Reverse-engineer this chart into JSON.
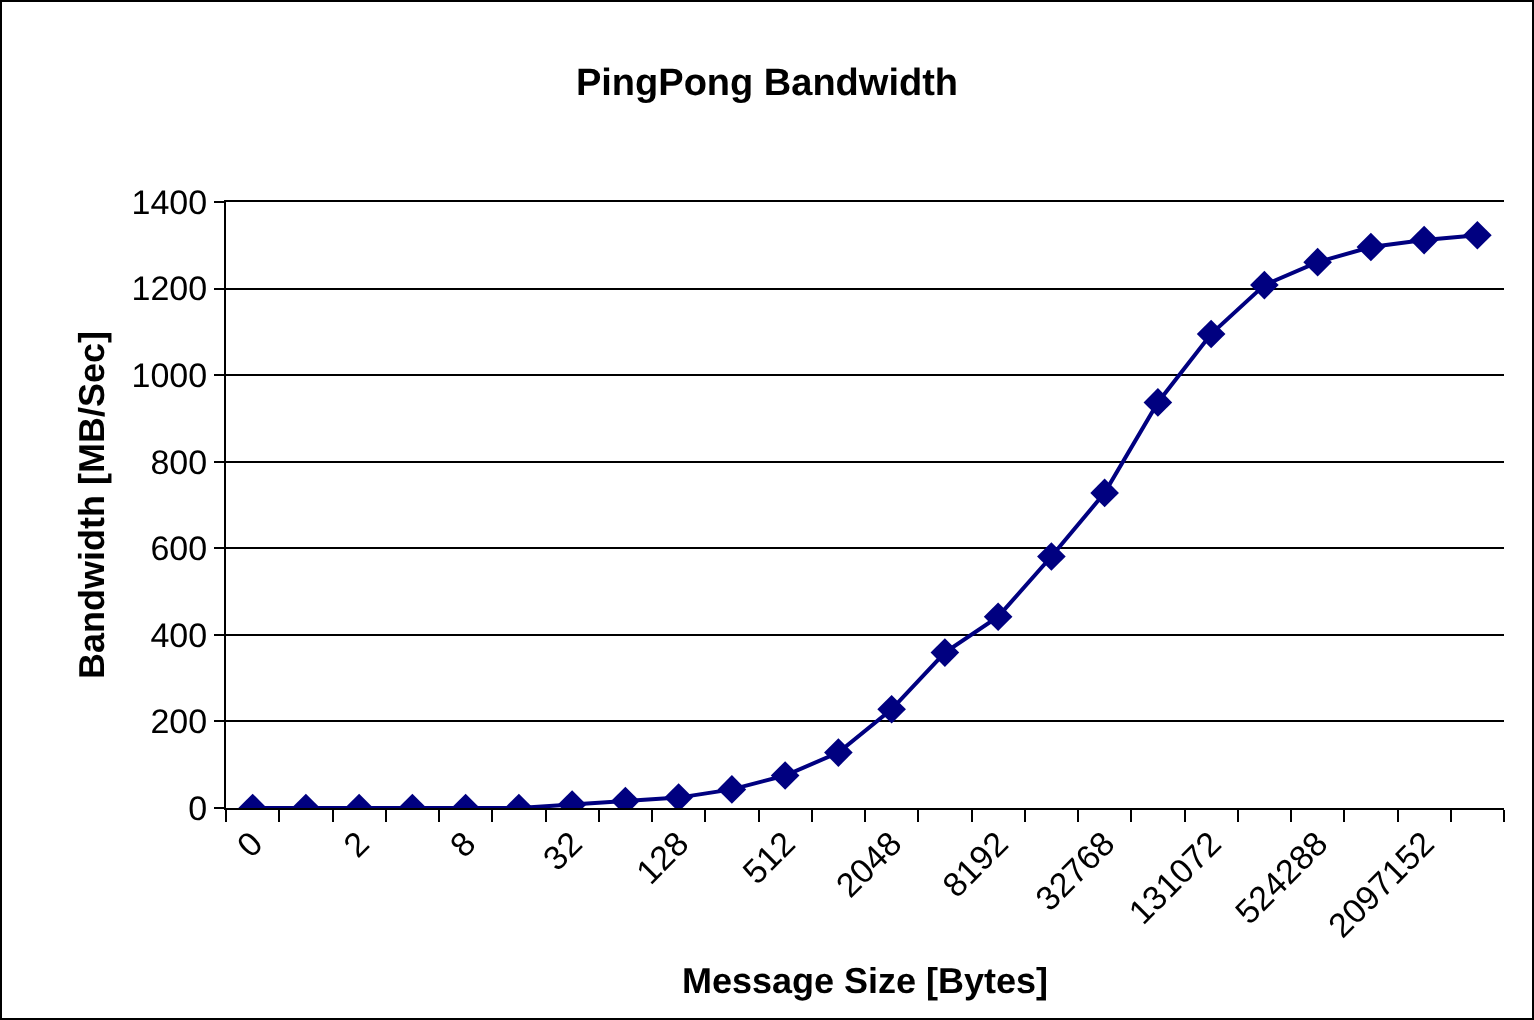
{
  "chart_data": {
    "type": "line",
    "title": "PingPong Bandwidth",
    "xlabel": "Message Size [Bytes]",
    "ylabel": "Bandwidth [MB/Sec]",
    "categories": [
      "0",
      null,
      "2",
      null,
      "8",
      null,
      "32",
      null,
      "128",
      null,
      "512",
      null,
      "2048",
      null,
      "8192",
      null,
      "32768",
      null,
      "131072",
      null,
      "524288",
      null,
      "2097152",
      null
    ],
    "series": [
      {
        "color": "#000080",
        "values": [
          0,
          0,
          0,
          0,
          0,
          0,
          8,
          16,
          24,
          43,
          75,
          128,
          228,
          359,
          442,
          581,
          728,
          937,
          1095,
          1208,
          1261,
          1296,
          1312,
          1323
        ]
      }
    ],
    "ylim": [
      0,
      1400
    ],
    "yticks": [
      0,
      200,
      400,
      600,
      800,
      1000,
      1200,
      1400
    ],
    "grid": "y",
    "marker": "diamond",
    "line_style": "solid"
  }
}
